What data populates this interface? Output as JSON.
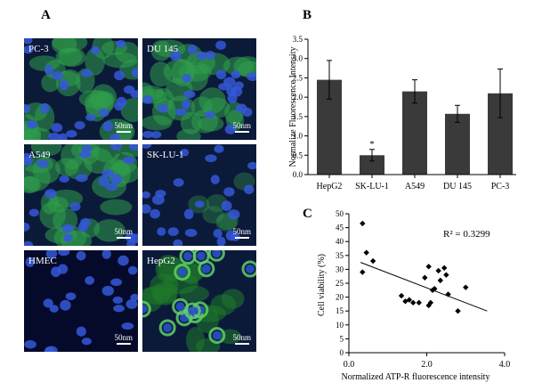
{
  "panels": {
    "a": "A",
    "b": "B",
    "c": "C"
  },
  "micrographs": [
    {
      "label": "PC-3",
      "scale": "50nm",
      "kind": "green"
    },
    {
      "label": "DU 145",
      "scale": "50nm",
      "kind": "green"
    },
    {
      "label": "A549",
      "scale": "50nm",
      "kind": "green"
    },
    {
      "label": "SK-LU-1",
      "scale": "50nm",
      "kind": "sparse"
    },
    {
      "label": "HMEC",
      "scale": "50nm",
      "kind": "blue"
    },
    {
      "label": "HepG2",
      "scale": "50nm",
      "kind": "ring"
    }
  ],
  "chart_data": [
    {
      "type": "bar",
      "ylabel": "Normalize Fluorescence Intensity",
      "categories": [
        "HepG2",
        "SK-LU-1",
        "A549",
        "DU 145",
        "PC-3"
      ],
      "values": [
        2.45,
        0.5,
        2.15,
        1.57,
        2.1
      ],
      "errors": [
        0.5,
        0.15,
        0.3,
        0.22,
        0.63
      ],
      "annotations": [
        {
          "category": "SK-LU-1",
          "text": "*"
        }
      ],
      "ylim": [
        0,
        3.5
      ],
      "yticks": [
        "0.0",
        "0.5",
        "1.0",
        "1.5",
        "2.0",
        "2.5",
        "3.0",
        "3.5"
      ],
      "bar_color": "#3a3a3a"
    },
    {
      "type": "scatter",
      "xlabel": "Normalized ATP-R fluorescence intensity",
      "ylabel": "Cell viability (%)",
      "annotation": "R² = 0.3299",
      "xlim": [
        0,
        4
      ],
      "ylim": [
        0,
        50
      ],
      "xticks": [
        "0.0",
        "2.0",
        "4.0"
      ],
      "yticks": [
        "0",
        "5",
        "10",
        "15",
        "20",
        "25",
        "30",
        "35",
        "40",
        "45",
        "50"
      ],
      "points": [
        [
          0.35,
          46.5
        ],
        [
          0.45,
          36
        ],
        [
          0.35,
          29
        ],
        [
          0.62,
          33
        ],
        [
          1.35,
          20.5
        ],
        [
          1.45,
          18.5
        ],
        [
          1.55,
          19
        ],
        [
          1.65,
          18
        ],
        [
          1.8,
          18
        ],
        [
          1.95,
          27
        ],
        [
          2.05,
          31
        ],
        [
          2.15,
          22.5
        ],
        [
          2.2,
          23
        ],
        [
          2.05,
          17
        ],
        [
          2.1,
          18
        ],
        [
          2.3,
          29.5
        ],
        [
          2.35,
          26
        ],
        [
          2.45,
          30.5
        ],
        [
          2.5,
          28
        ],
        [
          2.55,
          21
        ],
        [
          2.8,
          15
        ],
        [
          3.0,
          23.5
        ]
      ],
      "trendline": {
        "x": [
          0.3,
          3.55
        ],
        "y": [
          32.5,
          15
        ]
      }
    }
  ]
}
